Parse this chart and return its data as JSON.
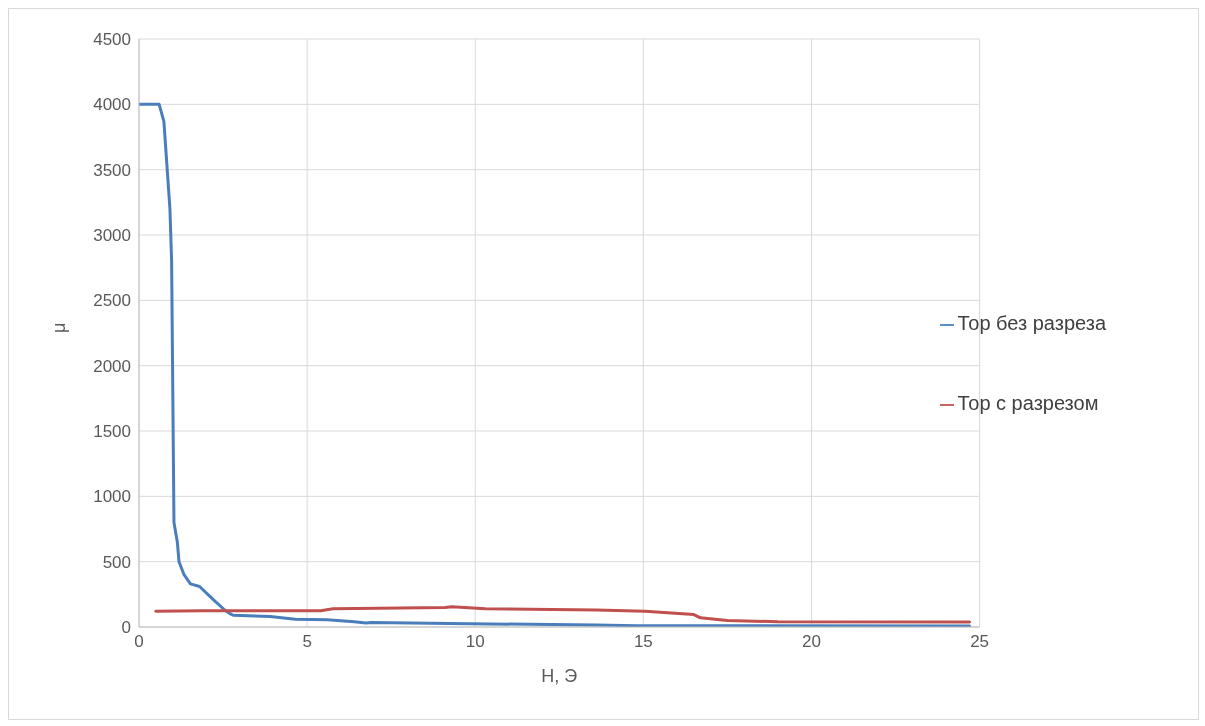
{
  "chart_data": {
    "type": "line",
    "xlabel": "H, Э",
    "ylabel": "μ",
    "xlim": [
      0,
      25
    ],
    "xticks": [
      0,
      5,
      10,
      15,
      20,
      25
    ],
    "ylim": [
      0,
      4500
    ],
    "yticks": [
      0,
      500,
      1000,
      1500,
      2000,
      2500,
      3000,
      3500,
      4000,
      4500
    ],
    "grid": true,
    "legend": "right",
    "marker": "none",
    "line_style": "solid",
    "series": [
      {
        "name": "Тор без разреза",
        "color": "#4a7ebb",
        "x": [
          0,
          0.6,
          0.74,
          0.92,
          0.97,
          1.04,
          1.14,
          1.19,
          1.34,
          1.53,
          1.8,
          2.25,
          2.55,
          2.72,
          2.8,
          3.9,
          4.65,
          5.6,
          6.4,
          6.75,
          6.9,
          9.85,
          13.6,
          14.8,
          24.7
        ],
        "values": [
          4000,
          4000,
          3870,
          3200,
          2800,
          800,
          650,
          500,
          400,
          330,
          310,
          200,
          130,
          100,
          90,
          80,
          60,
          55,
          40,
          30,
          35,
          25,
          15,
          10,
          8
        ]
      },
      {
        "name": "Тор с разрезом",
        "color": "#c0504d",
        "x": [
          0.5,
          1.9,
          5.4,
          5.77,
          9.1,
          9.3,
          10.3,
          13.6,
          15.05,
          16.5,
          16.7,
          17.5,
          19,
          24.7
        ],
        "values": [
          120,
          125,
          125,
          140,
          150,
          155,
          140,
          130,
          120,
          95,
          70,
          50,
          40,
          38
        ]
      }
    ]
  }
}
